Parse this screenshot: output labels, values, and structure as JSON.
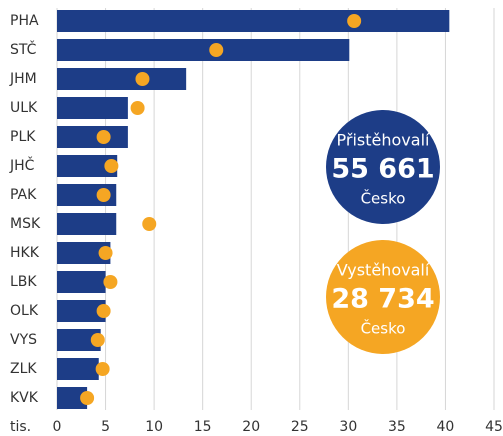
{
  "chart_data": {
    "type": "bar_dot",
    "categories": [
      "PHA",
      "STČ",
      "JHM",
      "ULK",
      "PLK",
      "JHČ",
      "PAK",
      "MSK",
      "HKK",
      "LBK",
      "OLK",
      "VYS",
      "ZLK",
      "KVK"
    ],
    "series": [
      {
        "name": "Přistěhovalí",
        "color": "#1d3d87",
        "values": [
          40.4,
          30.1,
          13.3,
          7.3,
          7.3,
          6.2,
          6.1,
          6.1,
          5.5,
          5.0,
          5.0,
          4.5,
          4.3,
          3.1
        ],
        "total": {
          "value": 55661,
          "label": "55 661"
        },
        "region": "Česko"
      },
      {
        "name": "Vystěhovalí",
        "color": "#f5a623",
        "values": [
          30.6,
          16.4,
          8.8,
          8.3,
          4.8,
          5.6,
          4.8,
          9.5,
          5.0,
          5.5,
          4.8,
          4.2,
          4.7,
          3.1
        ],
        "total": {
          "value": 28734,
          "label": "28 734"
        },
        "region": "Česko"
      }
    ],
    "xlabel": "tis.",
    "xlim": [
      0,
      45
    ],
    "xticks": [
      0,
      5,
      10,
      15,
      20,
      25,
      30,
      35,
      40,
      45
    ],
    "grid": true
  }
}
